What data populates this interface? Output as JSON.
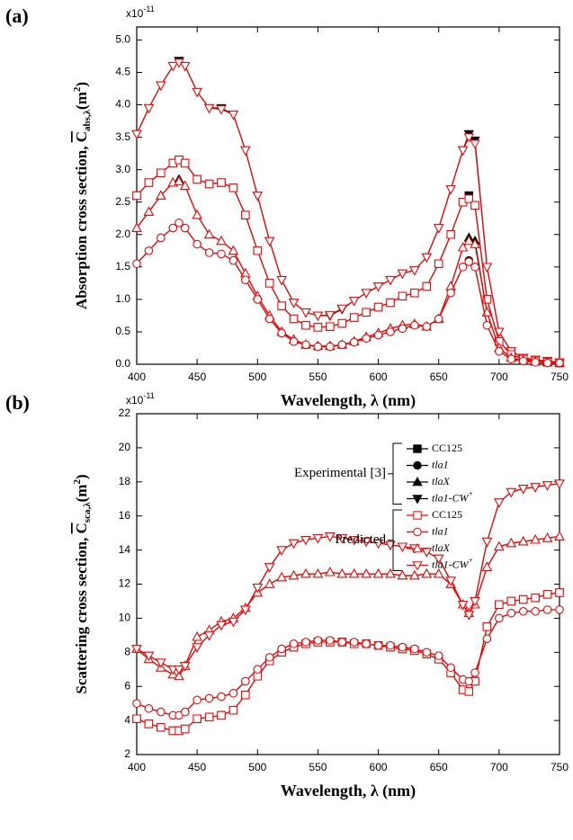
{
  "chart_data": [
    {
      "type": "line",
      "panel_label": "(a)",
      "y_multiplier": "x10",
      "y_multiplier_exp": "-11",
      "y_label": "Absorption cross section, ",
      "y_label_symbol": "C",
      "y_label_sub": "abs,λ",
      "y_label_unit": "(m",
      "y_label_unit_exp": "2",
      "y_label_close": ")",
      "x_label": "Wavelength, λ (nm)",
      "x": [
        400,
        410,
        420,
        430,
        435,
        440,
        450,
        460,
        470,
        480,
        490,
        500,
        510,
        520,
        530,
        540,
        550,
        560,
        570,
        580,
        590,
        600,
        610,
        620,
        630,
        640,
        650,
        660,
        670,
        675,
        680,
        690,
        700,
        710,
        720,
        730,
        740,
        750
      ],
      "xlim": [
        400,
        750
      ],
      "xticks": [
        400,
        450,
        500,
        550,
        600,
        650,
        700,
        750
      ],
      "ylim": [
        0,
        5.2
      ],
      "yticks": [
        {
          "value": 0,
          "label": "0.0"
        },
        {
          "value": 0.5,
          "label": "0.5"
        },
        {
          "value": 1,
          "label": "1.0"
        },
        {
          "value": 1.5,
          "label": "1.5"
        },
        {
          "value": 2,
          "label": "2.0"
        },
        {
          "value": 2.5,
          "label": "2.5"
        },
        {
          "value": 3,
          "label": "3.0"
        },
        {
          "value": 3.5,
          "label": "3.5"
        },
        {
          "value": 4,
          "label": "4.0"
        },
        {
          "value": 4.5,
          "label": "4.5"
        },
        {
          "value": 5,
          "label": "5.0"
        }
      ],
      "series_groups": [
        {
          "color": "#000000",
          "filled": true,
          "series": [
            {
              "marker": "triangle-down",
              "values": [
                3.55,
                3.95,
                4.3,
                4.6,
                4.68,
                4.6,
                4.2,
                3.95,
                3.95,
                3.85,
                3.3,
                2.6,
                1.9,
                1.3,
                0.95,
                0.8,
                0.75,
                0.75,
                0.85,
                0.98,
                1.1,
                1.2,
                1.3,
                1.4,
                1.45,
                1.65,
                2.1,
                2.7,
                3.3,
                3.55,
                3.45,
                1.5,
                0.5,
                0.2,
                0.1,
                0.07,
                0.05,
                0.03
              ]
            },
            {
              "marker": "square",
              "values": [
                2.6,
                2.8,
                2.95,
                3.1,
                3.15,
                3.1,
                2.85,
                2.78,
                2.8,
                2.72,
                2.3,
                1.75,
                1.25,
                0.9,
                0.7,
                0.6,
                0.57,
                0.58,
                0.63,
                0.72,
                0.8,
                0.88,
                0.95,
                1.05,
                1.1,
                1.2,
                1.55,
                2.0,
                2.5,
                2.6,
                2.45,
                1.0,
                0.35,
                0.15,
                0.08,
                0.05,
                0.03,
                0.02
              ]
            },
            {
              "marker": "triangle-up",
              "values": [
                2.1,
                2.35,
                2.6,
                2.8,
                2.85,
                2.75,
                2.3,
                2.0,
                1.9,
                1.75,
                1.4,
                1.05,
                0.75,
                0.5,
                0.38,
                0.3,
                0.28,
                0.28,
                0.3,
                0.35,
                0.42,
                0.48,
                0.55,
                0.6,
                0.62,
                0.58,
                0.7,
                1.2,
                1.8,
                1.95,
                1.9,
                0.8,
                0.25,
                0.1,
                0.06,
                0.04,
                0.03,
                0.02
              ]
            },
            {
              "marker": "circle",
              "values": [
                1.55,
                1.75,
                1.95,
                2.1,
                2.18,
                2.1,
                1.85,
                1.72,
                1.7,
                1.6,
                1.3,
                1.0,
                0.7,
                0.48,
                0.35,
                0.3,
                0.27,
                0.27,
                0.3,
                0.34,
                0.4,
                0.45,
                0.5,
                0.55,
                0.6,
                0.58,
                0.7,
                1.1,
                1.5,
                1.6,
                1.5,
                0.6,
                0.2,
                0.08,
                0.05,
                0.03,
                0.02,
                0.02
              ]
            }
          ]
        },
        {
          "color": "#ff0000",
          "filled": false,
          "series": [
            {
              "marker": "triangle-down",
              "values": [
                3.55,
                3.95,
                4.3,
                4.6,
                4.65,
                4.6,
                4.2,
                3.95,
                3.93,
                3.85,
                3.3,
                2.6,
                1.9,
                1.3,
                0.95,
                0.8,
                0.75,
                0.76,
                0.86,
                0.98,
                1.1,
                1.2,
                1.3,
                1.4,
                1.45,
                1.65,
                2.1,
                2.7,
                3.3,
                3.5,
                3.4,
                1.5,
                0.5,
                0.2,
                0.1,
                0.07,
                0.05,
                0.03
              ]
            },
            {
              "marker": "square",
              "values": [
                2.6,
                2.8,
                2.95,
                3.1,
                3.15,
                3.1,
                2.85,
                2.78,
                2.8,
                2.72,
                2.3,
                1.75,
                1.25,
                0.9,
                0.7,
                0.6,
                0.57,
                0.58,
                0.63,
                0.72,
                0.8,
                0.88,
                0.95,
                1.05,
                1.1,
                1.2,
                1.55,
                2.0,
                2.5,
                2.55,
                2.45,
                1.0,
                0.35,
                0.15,
                0.08,
                0.05,
                0.03,
                0.02
              ]
            },
            {
              "marker": "triangle-up",
              "values": [
                2.1,
                2.35,
                2.6,
                2.8,
                2.82,
                2.75,
                2.3,
                2.0,
                1.9,
                1.75,
                1.4,
                1.05,
                0.75,
                0.5,
                0.38,
                0.3,
                0.28,
                0.28,
                0.3,
                0.35,
                0.42,
                0.48,
                0.55,
                0.6,
                0.62,
                0.58,
                0.7,
                1.2,
                1.8,
                1.9,
                1.85,
                0.8,
                0.25,
                0.1,
                0.06,
                0.04,
                0.03,
                0.02
              ]
            },
            {
              "marker": "circle",
              "values": [
                1.55,
                1.75,
                1.95,
                2.1,
                2.18,
                2.1,
                1.85,
                1.72,
                1.7,
                1.6,
                1.3,
                1.0,
                0.7,
                0.48,
                0.35,
                0.3,
                0.27,
                0.27,
                0.3,
                0.34,
                0.4,
                0.45,
                0.5,
                0.55,
                0.6,
                0.58,
                0.7,
                1.1,
                1.5,
                1.58,
                1.5,
                0.6,
                0.2,
                0.08,
                0.05,
                0.03,
                0.02,
                0.02
              ]
            }
          ]
        }
      ]
    },
    {
      "type": "line",
      "panel_label": "(b)",
      "y_multiplier": "x10",
      "y_multiplier_exp": "-11",
      "y_label": "Scattering cross section, ",
      "y_label_symbol": "C",
      "y_label_sub": "sca,λ",
      "y_label_unit": "(m",
      "y_label_unit_exp": "2",
      "y_label_close": ")",
      "x_label": "Wavelength, λ (nm)",
      "x": [
        400,
        410,
        420,
        430,
        435,
        440,
        450,
        460,
        470,
        480,
        490,
        500,
        510,
        520,
        530,
        540,
        550,
        560,
        570,
        580,
        590,
        600,
        610,
        620,
        630,
        640,
        650,
        660,
        670,
        675,
        680,
        690,
        700,
        710,
        720,
        730,
        740,
        750
      ],
      "xlim": [
        400,
        750
      ],
      "xticks": [
        400,
        450,
        500,
        550,
        600,
        650,
        700,
        750
      ],
      "ylim": [
        2,
        22
      ],
      "yticks": [
        2,
        4,
        6,
        8,
        10,
        12,
        14,
        16,
        18,
        20,
        22
      ],
      "legend": true,
      "series_groups": [
        {
          "title": "Experimental [3]",
          "color": "#000000",
          "filled": true,
          "series": [
            {
              "name": "CC125",
              "marker": "square",
              "values": [
                4.1,
                3.8,
                3.6,
                3.4,
                3.4,
                3.5,
                4.1,
                4.2,
                4.3,
                4.6,
                5.5,
                6.6,
                7.5,
                8.0,
                8.3,
                8.5,
                8.6,
                8.6,
                8.6,
                8.5,
                8.5,
                8.4,
                8.3,
                8.2,
                8.1,
                7.9,
                7.6,
                6.8,
                5.8,
                5.7,
                6.3,
                9.5,
                10.8,
                11.0,
                11.1,
                11.2,
                11.4,
                11.5
              ]
            },
            {
              "name": "tla1",
              "italic": true,
              "marker": "circle",
              "values": [
                5.0,
                4.7,
                4.5,
                4.3,
                4.3,
                4.5,
                5.2,
                5.3,
                5.4,
                5.6,
                6.3,
                7.0,
                7.7,
                8.2,
                8.5,
                8.6,
                8.7,
                8.7,
                8.6,
                8.6,
                8.5,
                8.4,
                8.4,
                8.3,
                8.2,
                8.0,
                7.8,
                7.1,
                6.4,
                6.3,
                6.8,
                8.8,
                10.0,
                10.3,
                10.4,
                10.4,
                10.5,
                10.5
              ]
            },
            {
              "name": "tlaX",
              "italic": true,
              "marker": "triangle-up",
              "values": [
                8.2,
                7.6,
                7.1,
                6.7,
                6.6,
                7.2,
                8.9,
                9.3,
                9.8,
                10.0,
                10.6,
                11.5,
                12.0,
                12.4,
                12.5,
                12.6,
                12.6,
                12.7,
                12.6,
                12.6,
                12.6,
                12.6,
                12.6,
                12.5,
                12.5,
                12.6,
                12.6,
                12.0,
                10.8,
                10.3,
                10.8,
                13.0,
                14.2,
                14.4,
                14.5,
                14.6,
                14.7,
                14.8
              ]
            },
            {
              "name": "tla1-CW",
              "name_sup": "+",
              "italic": true,
              "marker": "triangle-down",
              "values": [
                8.2,
                7.8,
                7.4,
                7.0,
                7.0,
                7.2,
                8.3,
                9.0,
                9.6,
                9.8,
                10.5,
                11.8,
                13.0,
                14.0,
                14.4,
                14.6,
                14.7,
                14.8,
                14.7,
                14.6,
                14.5,
                14.4,
                14.3,
                14.2,
                14.1,
                13.9,
                13.5,
                12.2,
                10.8,
                10.2,
                11.0,
                14.5,
                16.8,
                17.4,
                17.6,
                17.7,
                17.8,
                17.9
              ]
            }
          ]
        },
        {
          "title": "Predicted",
          "color": "#ff0000",
          "filled": false,
          "series": [
            {
              "name": "CC125",
              "marker": "square",
              "values": [
                4.1,
                3.8,
                3.6,
                3.4,
                3.4,
                3.5,
                4.1,
                4.2,
                4.3,
                4.6,
                5.5,
                6.6,
                7.5,
                8.0,
                8.3,
                8.5,
                8.6,
                8.6,
                8.6,
                8.5,
                8.5,
                8.4,
                8.3,
                8.2,
                8.1,
                7.9,
                7.6,
                6.8,
                5.8,
                5.7,
                6.3,
                9.5,
                10.8,
                11.0,
                11.1,
                11.2,
                11.4,
                11.5
              ]
            },
            {
              "name": "tla1",
              "italic": true,
              "marker": "circle",
              "values": [
                5.0,
                4.7,
                4.5,
                4.3,
                4.3,
                4.5,
                5.2,
                5.3,
                5.4,
                5.6,
                6.3,
                7.0,
                7.7,
                8.2,
                8.5,
                8.6,
                8.7,
                8.7,
                8.6,
                8.6,
                8.5,
                8.4,
                8.4,
                8.3,
                8.2,
                8.0,
                7.8,
                7.1,
                6.4,
                6.3,
                6.8,
                8.8,
                10.0,
                10.3,
                10.4,
                10.4,
                10.5,
                10.5
              ]
            },
            {
              "name": "tlaX",
              "italic": true,
              "marker": "triangle-up",
              "values": [
                8.2,
                7.6,
                7.1,
                6.7,
                6.6,
                7.2,
                8.9,
                9.3,
                9.8,
                10.0,
                10.6,
                11.5,
                12.0,
                12.4,
                12.5,
                12.6,
                12.6,
                12.7,
                12.6,
                12.6,
                12.6,
                12.6,
                12.6,
                12.5,
                12.5,
                12.6,
                12.6,
                12.0,
                10.8,
                10.3,
                10.8,
                13.0,
                14.2,
                14.4,
                14.5,
                14.6,
                14.7,
                14.8
              ]
            },
            {
              "name": "tla1-CW",
              "name_sup": "+",
              "italic": true,
              "marker": "triangle-down",
              "values": [
                8.2,
                7.8,
                7.4,
                7.0,
                7.0,
                7.2,
                8.3,
                9.0,
                9.6,
                9.8,
                10.5,
                11.8,
                13.0,
                14.0,
                14.4,
                14.6,
                14.7,
                14.8,
                14.7,
                14.6,
                14.5,
                14.4,
                14.3,
                14.2,
                14.1,
                13.9,
                13.5,
                12.2,
                10.8,
                10.2,
                11.0,
                14.5,
                16.8,
                17.4,
                17.6,
                17.7,
                17.8,
                17.9
              ]
            }
          ]
        }
      ]
    }
  ]
}
